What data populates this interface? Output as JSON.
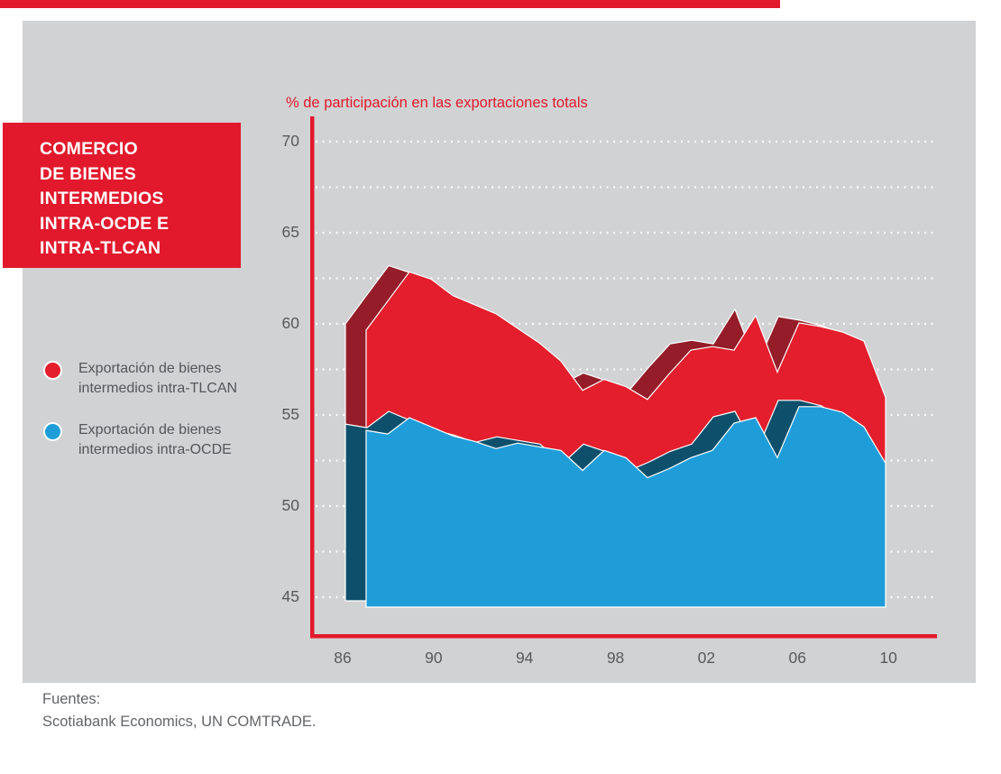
{
  "colors": {
    "accent_red": "#e2192c",
    "area_red": "#e41e2c",
    "area_red_shadow": "#941d29",
    "area_blue": "#1f9dd9",
    "area_blue_shadow": "#0e506c",
    "panel_background": "#d1d2d3",
    "page_background": "#ffffff",
    "tick_text": "#58595b",
    "source_text": "#636568",
    "gridline": "#ffffff",
    "title_box_text": "#ffffff"
  },
  "title_box": {
    "lines": [
      "COMERCIO",
      "DE BIENES",
      "INTERMEDIOS",
      "INTRA-OCDE E",
      "INTRA-TLCAN"
    ]
  },
  "legend": {
    "items": [
      {
        "color_name": "red-dot",
        "label_lines": [
          "Exportación de bienes",
          "intermedios intra-TLCAN"
        ]
      },
      {
        "color_name": "blue-dot",
        "label_lines": [
          "Exportación de bienes",
          "intermedios intra-OCDE"
        ]
      }
    ]
  },
  "source": {
    "label": "Fuentes:",
    "text": "Scotiabank Economics, UN COMTRADE."
  },
  "chart_data": {
    "type": "area",
    "style": "3d-offset-shadow",
    "title": "% de participación en las exportaciones totals",
    "xlabel": "",
    "ylabel": "% de participación en las exportaciones totals",
    "x": [
      1986,
      1987,
      1988,
      1989,
      1990,
      1991,
      1992,
      1993,
      1994,
      1995,
      1996,
      1997,
      1998,
      1999,
      2000,
      2001,
      2002,
      2003,
      2004,
      2005,
      2006,
      2007,
      2008,
      2009,
      2010
    ],
    "x_tick_labels": [
      "86",
      "90",
      "94",
      "98",
      "02",
      "06",
      "10"
    ],
    "y_ticks": [
      70,
      65,
      60,
      55,
      50,
      45
    ],
    "ylim": [
      44.8,
      70.5
    ],
    "grid": true,
    "grid_step": 2.5,
    "legend_position": "left",
    "series": [
      {
        "name": "Exportación de bienes intermedios intra-TLCAN",
        "color": "#e41e2c",
        "shadow_color": "#941d29",
        "values": [
          60.0,
          61.6,
          63.2,
          62.8,
          61.9,
          61.4,
          60.9,
          60.1,
          59.3,
          58.3,
          56.7,
          57.3,
          56.9,
          56.2,
          57.6,
          58.9,
          59.1,
          58.9,
          60.8,
          57.7,
          60.4,
          60.2,
          59.9,
          59.4,
          56.3
        ]
      },
      {
        "name": "Exportación de bienes intermedios intra-OCDE",
        "color": "#1f9dd9",
        "shadow_color": "#0e506c",
        "values": [
          54.5,
          54.3,
          55.2,
          54.7,
          54.2,
          53.9,
          53.5,
          53.8,
          53.6,
          53.4,
          52.3,
          53.4,
          53.0,
          51.9,
          52.4,
          53.0,
          53.4,
          54.9,
          55.2,
          53.0,
          55.8,
          55.8,
          55.5,
          54.7,
          52.7
        ]
      }
    ]
  }
}
